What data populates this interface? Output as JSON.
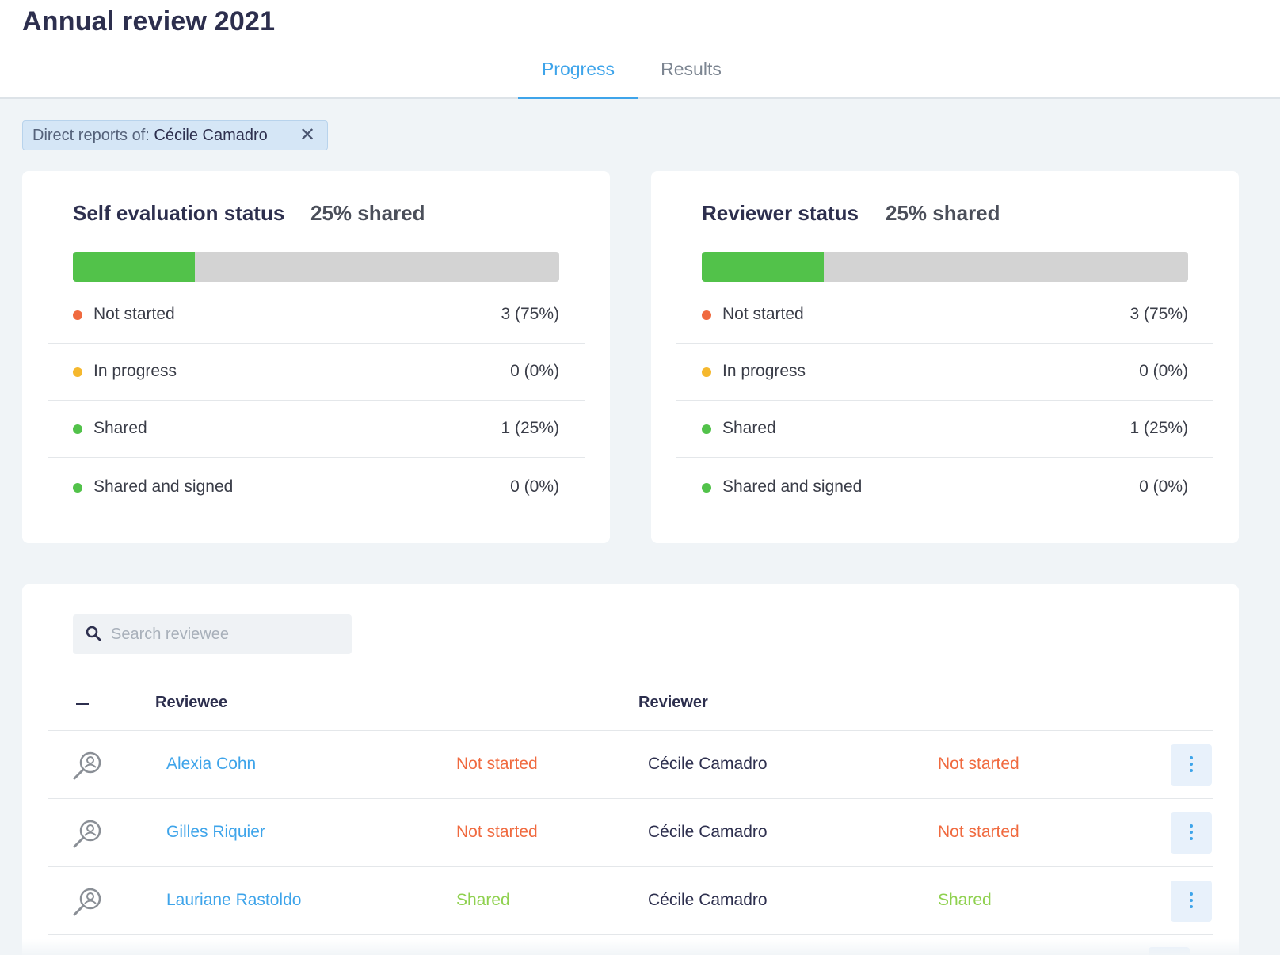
{
  "header": {
    "title": "Annual review 2021",
    "tabs": [
      {
        "label": "Progress",
        "active": true
      },
      {
        "label": "Results",
        "active": false
      }
    ]
  },
  "filter": {
    "prefix": "Direct reports of: ",
    "value": "Cécile Camadro",
    "close_icon": "close-icon"
  },
  "colors": {
    "accent": "#3ea4ea",
    "not_started": "#f06a3f",
    "in_progress": "#f5b82e",
    "shared": "#52c24a",
    "shared_text": "#8fd14f"
  },
  "self_evaluation": {
    "title": "Self evaluation status",
    "summary": "25% shared",
    "progress_fraction": 0.25,
    "statuses": [
      {
        "label": "Not started",
        "value": "3 (75%)",
        "color": "#f06a3f"
      },
      {
        "label": "In progress",
        "value": "0 (0%)",
        "color": "#f5b82e"
      },
      {
        "label": "Shared",
        "value": "1 (25%)",
        "color": "#52c24a"
      },
      {
        "label": "Shared and signed",
        "value": "0 (0%)",
        "color": "#52c24a"
      }
    ]
  },
  "reviewer_status": {
    "title": "Reviewer status",
    "summary": "25% shared",
    "progress_fraction": 0.25,
    "statuses": [
      {
        "label": "Not started",
        "value": "3 (75%)",
        "color": "#f06a3f"
      },
      {
        "label": "In progress",
        "value": "0 (0%)",
        "color": "#f5b82e"
      },
      {
        "label": "Shared",
        "value": "1 (25%)",
        "color": "#52c24a"
      },
      {
        "label": "Shared and signed",
        "value": "0 (0%)",
        "color": "#52c24a"
      }
    ]
  },
  "table": {
    "search_placeholder": "Search reviewee",
    "search_value": "",
    "columns": {
      "reviewee": "Reviewee",
      "reviewer": "Reviewer"
    },
    "rows": [
      {
        "reviewee": "Alexia Cohn",
        "self_status": "Not started",
        "reviewer": "Cécile Camadro",
        "reviewer_status": "Not started"
      },
      {
        "reviewee": "Gilles Riquier",
        "self_status": "Not started",
        "reviewer": "Cécile Camadro",
        "reviewer_status": "Not started"
      },
      {
        "reviewee": "Lauriane Rastoldo",
        "self_status": "Shared",
        "reviewer": "Cécile Camadro",
        "reviewer_status": "Shared"
      }
    ]
  }
}
